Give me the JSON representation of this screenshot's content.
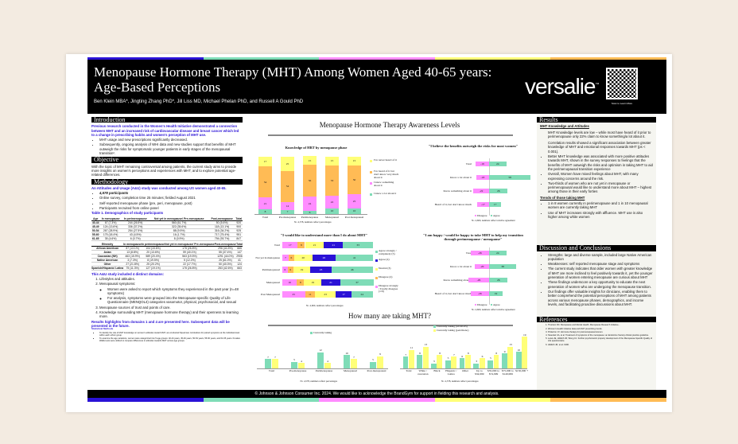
{
  "colors": {
    "blue": "#2a12d6",
    "teal": "#7fdcb7",
    "pink": "#ff8cff",
    "yellow": "#ffff78",
    "orange": "#ffbb55"
  },
  "header": {
    "title": "Menopause Hormone Therapy (MHT) Among Women Aged 40-65 years: Age-Based Perceptions",
    "authors": "Ben Klein MBA*, Jingting Zhang PhD*, Jill Liss MD, Michael Phelan PhD, and Russell A Gould PhD",
    "logo": "versalie",
    "qr_caption": "Scan to Learn More"
  },
  "intro": {
    "heading": "Introduction",
    "lead": "Previous research conducted in the Women's Health Initiative demonstrated a connection between MHT and an increased risk of cardiovascular disease and breast cancer which led to a change in prescribing habits and women's perception of MHT use.",
    "bullets": [
      "MHT usage and new prescriptions significantly decreased.",
      "Subsequently, ongoing analysis of WHI data and new studies support that benefits of MHT outweigh the risks for symptomatic younger patients in early stages of the menopausal transition²."
    ]
  },
  "objective": {
    "heading": "Objective",
    "text": "With the topic of MHT remaining controversial among patients, the current study aims to provide more insights on women's perceptions and experiences with MHT, and to explore potential age-related differences."
  },
  "methods": {
    "heading": "Methodology",
    "lead": "An Attitudes and Usage (A&U) study was conducted among US women aged 40-65.",
    "bullets": [
      "4,578 participants",
      "Online survey, completion time 25 minutes; fielded August 2021",
      "Self-reported menopause phase (pre, peri, menopause, post)",
      "Participants recruited from online panel"
    ],
    "table_title": "Table 1. Demographics of study participants",
    "age_table": {
      "headers": [
        "Age",
        "In menopause",
        "In perimenopause",
        "Not yet in menopause/ Pre-menopause",
        "Post-menopause",
        "Total"
      ],
      "rows": [
        [
          "40-44",
          "67 (7.3%)",
          "244 (26.5%)",
          "560 (61.7%)",
          "50 (5.6%)",
          "920"
        ],
        [
          "45-49",
          "124 (13.6%)",
          "336 (37.2%)",
          "322 (35.6%)",
          "118 (13.1%)",
          "900"
        ],
        [
          "50-54",
          "267 (28.9%)",
          "254 (27.5%)",
          "88 (9.5%)",
          "316 (34.2%)",
          "925"
        ],
        [
          "55-60",
          "175 (18.4%)",
          "43 (4.5%)",
          "16 (1.7%)",
          "717 (75.4%)",
          "951"
        ],
        [
          "61-65",
          "35 (4.6%)",
          "6 (0.7%)",
          "8 (0.9%)",
          "794 (93.7%)",
          "847"
        ]
      ]
    },
    "eth_table": {
      "headers": [
        "Ethnicity",
        "In menopause",
        "In perimenopause",
        "Not yet in menopause/ Pre-menopause",
        "Post-menopause",
        "Total"
      ],
      "rows": [
        [
          "African American",
          "87 (13.1%)",
          "104 (15.6%)",
          "178 (26.8%)",
          "296 (44.5%)",
          "665"
        ],
        [
          "Asian",
          "13 (8.8%)",
          "20 (13.6%)",
          "59 (40.1%)",
          "55 (37.4%)",
          "147"
        ],
        [
          "Caucasian (NH)",
          "463 (15.9%)",
          "589 (20.4%)",
          "563 (19.5%)",
          "1291 (44.0%)",
          "2906"
        ],
        [
          "Native American",
          "3 (7.3%)",
          "8 (19.5%)",
          "5 (12.2%)",
          "25 (61.0%)",
          "41"
        ],
        [
          "Other",
          "27 (21.8%)",
          "25 (20.2%)",
          "22 (17.7%)",
          "50 (40.3%)",
          "124"
        ],
        [
          "Spanish/Hispanic/ Latina",
          "75 (11.3%)",
          "127 (19.1%)",
          "178 (26.8%)",
          "283 (42.6%)",
          "663"
        ]
      ]
    },
    "domains_lead": "This A&U study included 4 distinct domains:",
    "domains": [
      "Lifestyles and attitudes.",
      "Menopausal symptoms:",
      "Menopause sources of trust and points of care.",
      "Knowledge surrounding MHT (menopause hormone therapy) and their openness to learning more."
    ],
    "symptom_bullets": [
      "Women were asked to report which symptoms they experienced in the past year (n=48 symptoms)",
      "For analysis, symptoms were grouped into the Menopause-specific Quality of Life Questionnaire (MENQOL4) categories vasomotor, physical, psychosocial, and sexual"
    ],
    "results_note": "Results highlights from domains 1 and 4 are presented here. Subsequent data will be presented in the future.",
    "stat_heading": "Statistical Methods",
    "stat_bullets": [
      "To identify the role of MHT knowledge on women's attitudes toward MHT, we conducted Spearman correlations for paired symptoms at the individual level within each ethnic group.",
      "To examine the age variations, women were categorized into 5 age groups: 40-44 years, 45-49 years, 50-54 years, 55-60 years, and 61-65 years. Kruskal-Wallis tests were utilized to compare differences in attitudes towards MHT across age groups."
    ]
  },
  "middle": {
    "title": "Menopause Hormone Therapy Awareness Levels",
    "title2": "How many are taking MHT?"
  },
  "chart_data": [
    {
      "type": "bar",
      "stacked": true,
      "title": "Knowledge of HRT by menopause phase",
      "categories": [
        "Total",
        "Pre menopause",
        "Perimenopause",
        "Menopausal",
        "Post menopausal"
      ],
      "series": [
        {
          "name": "I know a lot about it",
          "color": "#7fdcb7",
          "values": [
            8,
            7,
            6,
            10,
            10
          ]
        },
        {
          "name": "I know something about it",
          "color": "#ff8cff",
          "values": [
            21,
            14,
            24,
            22,
            25
          ]
        },
        {
          "name": "I've heard of it but don't know very much about it",
          "color": "#ffbb55",
          "values": [
            54,
            54,
            56,
            53,
            50
          ]
        },
        {
          "name": "I've never heard of it",
          "color": "#ffff78",
          "values": [
            17,
            25,
            15,
            15,
            15
          ]
        }
      ],
      "note": "N= 4,578, numbers reflect percentages"
    },
    {
      "type": "bar",
      "orientation": "horizontal",
      "diverging": true,
      "title": "\"I believe the benefits outweigh the risks for most women\"",
      "categories": [
        "Total",
        "Know a lot about it",
        "Know something about it",
        "Heard of it, but don't know much"
      ],
      "series": [
        {
          "name": "Disagree",
          "color": "#ff8cff",
          "values": [
            -19,
            -18,
            -22,
            -17
          ]
        },
        {
          "name": "Agree",
          "color": "#7fdcb7",
          "values": [
            24,
            58,
            26,
            17
          ]
        }
      ],
      "note": "N= 4,600, numbers reflect relative agreement"
    },
    {
      "type": "bar",
      "orientation": "horizontal",
      "stacked": true,
      "title": "\"I would like to understand more than I do about MHT\"",
      "categories": [
        "Total",
        "Not yet in menopause",
        "Perimenopausal",
        "Menopausal",
        "Post Menopausal"
      ],
      "series": [
        {
          "name": "Disagree strongly / Totally disagree (1/0)",
          "color": "#ff8cff",
          "values": [
            17,
            7,
            6,
            16,
            25
          ]
        },
        {
          "name": "Disagree (2)",
          "color": "#ffbb55",
          "values": [
            8,
            6,
            6,
            8,
            11
          ]
        },
        {
          "name": "Neutral (3)",
          "color": "#ffff78",
          "values": [
            21,
            20,
            19,
            19,
            23
          ]
        },
        {
          "name": "Agree (4)",
          "color": "#2a12d6",
          "values": [
            21,
            26,
            23,
            21,
            17
          ]
        },
        {
          "name": "Agree strongly / completely (5)",
          "color": "#7fdcb7",
          "values": [
            33,
            41,
            46,
            37,
            24
          ]
        }
      ],
      "note": "N= 4,600, numbers reflect percentages"
    },
    {
      "type": "bar",
      "orientation": "horizontal",
      "diverging": true,
      "title": "\"I am happy / would be happy to take MHT to help my transition through perimenopause / menopause\"",
      "categories": [
        "Total",
        "Know a lot about it",
        "Know something about it",
        "Heard of it, but don't know much"
      ],
      "series": [
        {
          "name": "Disagree",
          "color": "#ff8cff",
          "values": [
            -26,
            -20,
            -29,
            -26
          ]
        },
        {
          "name": "Agree",
          "color": "#7fdcb7",
          "values": [
            24,
            38,
            26,
            19
          ]
        }
      ],
      "note": "N= 4,600, numbers reflect relative agreement"
    },
    {
      "type": "bar",
      "title": "",
      "categories": [
        "Total",
        "Pre-menopause",
        "Perimenopause",
        "Menopausal",
        "Post-menopausal"
      ],
      "series": [
        {
          "name": "Currently taking",
          "color": "#7fdcb7",
          "values": [
            7,
            5,
            12,
            10,
            5
          ]
        },
        {
          "name": "",
          "color": "#ffff78",
          "values": [
            7,
            4,
            4,
            7,
            9
          ]
        }
      ],
      "ylim": [
        0,
        20
      ],
      "note": "N= 4,578, numbers reflect percentages"
    },
    {
      "type": "bar",
      "title": "",
      "categories": [
        "Total",
        "White / caucasian",
        "Black",
        "Hispanic / Latina",
        "Other",
        "Up to $34,999",
        "$35,000 to $74,999",
        "$75,000 to $149,999",
        "$150,000 +"
      ],
      "series": [
        {
          "name": "Currently taking (all 40-65)",
          "color": "#7fdcb7",
          "values": [
            7,
            8,
            3,
            5,
            6,
            3,
            5,
            9,
            10
          ]
        },
        {
          "name": "Currently taking (peri/meno)",
          "color": "#ffff78",
          "values": [
            11,
            13,
            8,
            7,
            8,
            6,
            8,
            13,
            19
          ]
        }
      ],
      "ylim": [
        0,
        20
      ],
      "note": "N= 4,578, numbers reflect percentages"
    }
  ],
  "results": {
    "heading": "Results",
    "sub1": "MHT Knowledge and Attitudes",
    "paras": [
      "MHT Knowledge levels are low – while most have heard of it prior to perimenopause only 22% claim to know something/a lot about it.",
      "Correlation results showed a significant association between greater knowledge of MHT and emotional responses towards MHT (ps < 0.001)."
    ],
    "bullets": [
      "Better MHT knowledge was associated with more positive attitudes towards MHT, shown in the survey responses to feelings that the benefits of MHT outweigh the risks and optimism in taking MHT to aid the perimenopausal transition experience",
      "Overall, Women have mixed feelings about MHT, with many expressing concerns around the risk.",
      "Two-thirds of women who are not yet in menopause or perimenopausal would like to understand more about MHT – highest among those in their early forties"
    ],
    "sub2": "Trends of those taking MHT",
    "bullets2": [
      "1 in 8 women currently in perimenopause and 1 in 10 menopausal women are currently taking MHT",
      "Use of MHT increases strongly with affluence. MHT use is also higher among white women"
    ]
  },
  "discussion": {
    "heading": "Discussion and Conclusions",
    "bullets": [
      "Strengths: large and diverse sample, included large Native American population",
      "Weaknesses: self reported menopause stage and symptoms",
      "The current study indicates that older women with greater knowledge of MHT are more inclined to feel positively towards it, yet the younger generation of women entering menopause are curious about MHT",
      "These findings underscore a key opportunity to educate the next generation of women who are undergoing the menopause transition.",
      "Our findings offer valuable insights for clinicians, enabling them to better comprehend the potential perceptions of MHT among patients across various menopause phases, demographics, and income levels, and facilitating proactive discussions about MHT."
    ]
  },
  "references": {
    "heading": "References",
    "items": [
      "Thurston RC. Menopause and Mental Health. Menopause Research Initiative...",
      "Women's Health Initiative data and MHT prescribing trends.",
      "Pinkerton JV. Hormone therapy for postmenopausal women.",
      "Stuenkel CA, et al. Treatment of symptoms of the menopause: an Endocrine Society clinical practice guideline.",
      "Lewis JE, Hilditch JR, Wong CJ. Further psychometric property development of the Menopause-Specific Quality of Life questionnaire.",
      "Hilditch JR, et al. 1996."
    ]
  },
  "footer": "© Johnson & Johnson Consumer Inc. 2024. We would like to acknowledge the BrandGym for support in fielding this research and analysis."
}
